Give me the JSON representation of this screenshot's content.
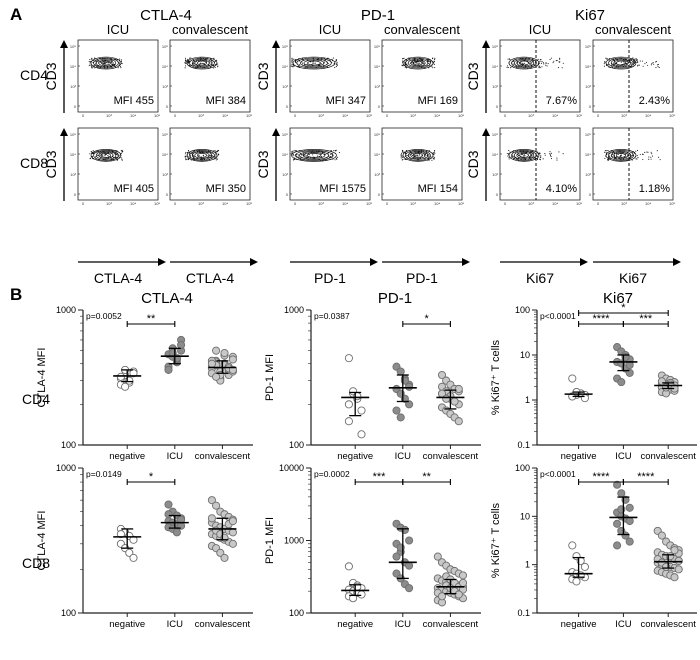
{
  "panel_labels": {
    "a": "A",
    "b": "B"
  },
  "panel_a": {
    "groups": [
      {
        "name": "CTLA-4",
        "x_label": "CTLA-4",
        "gate_line": false,
        "columns": [
          "ICU",
          "convalescent"
        ],
        "rows": [
          {
            "row": "CD4",
            "values": [
              "MFI 455",
              "MFI 384"
            ]
          },
          {
            "row": "CD8",
            "values": [
              "MFI 405",
              "MFI 350"
            ]
          }
        ]
      },
      {
        "name": "PD-1",
        "x_label": "PD-1",
        "gate_line": false,
        "columns": [
          "ICU",
          "convalescent"
        ],
        "rows": [
          {
            "row": "CD4",
            "values": [
              "MFI 347",
              "MFI 169"
            ]
          },
          {
            "row": "CD8",
            "values": [
              "MFI 1575",
              "MFI 154"
            ]
          }
        ]
      },
      {
        "name": "Ki67",
        "x_label": "Ki67",
        "gate_line": true,
        "columns": [
          "ICU",
          "convalescent"
        ],
        "rows": [
          {
            "row": "CD4",
            "values": [
              "7.67%",
              "2.43%"
            ]
          },
          {
            "row": "CD8",
            "values": [
              "4.10%",
              "1.18%"
            ]
          }
        ]
      }
    ],
    "y_label": "CD3",
    "x_tick_labels": [
      "0",
      "10³",
      "10⁴",
      "10⁵"
    ],
    "ctla_min_tick": "0",
    "pd1_min_tick": "-362",
    "ki67_min_ticks": [
      "-523",
      "-594"
    ],
    "y_tick_labels": [
      "10⁵",
      "10⁴",
      "10³",
      "0"
    ]
  },
  "row_labels": [
    "CD4",
    "CD8"
  ],
  "colors": {
    "negative": "#ffffff",
    "ICU": "#8c8c8c",
    "convalescent": "#c8c8c8",
    "outline": "#6e6e6e"
  },
  "chart_data": [
    {
      "type": "scatter",
      "title": "CTLA-4",
      "row": "CD4",
      "ylabel": "CTLA-4 MFI",
      "scale": "log",
      "ylim": [
        100,
        1000
      ],
      "yticks": [
        "100",
        "1000"
      ],
      "categories": [
        "negative",
        "ICU",
        "convalescent"
      ],
      "pvalue": "p=0.0052",
      "series": [
        {
          "name": "negative",
          "values": [
            310,
            330,
            290,
            350,
            280,
            360,
            300,
            340,
            320,
            270
          ],
          "median": 325,
          "iqr": [
            295,
            360
          ]
        },
        {
          "name": "ICU",
          "values": [
            470,
            520,
            410,
            600,
            380,
            450,
            430,
            500,
            360,
            480,
            440,
            550
          ],
          "median": 455,
          "iqr": [
            400,
            520
          ]
        },
        {
          "name": "convalescent",
          "values": [
            380,
            420,
            350,
            400,
            330,
            450,
            370,
            500,
            310,
            390,
            360,
            430,
            340,
            410,
            300,
            460,
            380,
            350,
            420,
            390,
            330,
            480,
            370,
            360,
            400,
            320
          ],
          "median": 375,
          "iqr": [
            340,
            420
          ]
        }
      ],
      "brackets": [
        {
          "from": 0,
          "to": 1,
          "label": "**"
        }
      ]
    },
    {
      "type": "scatter",
      "title": "PD-1",
      "row": "CD4",
      "ylabel": "PD-1 MFI",
      "scale": "log",
      "ylim": [
        100,
        1000
      ],
      "yticks": [
        "100",
        "1000"
      ],
      "categories": [
        "negative",
        "ICU",
        "convalescent"
      ],
      "pvalue": "p=0.0387",
      "series": [
        {
          "name": "negative",
          "values": [
            440,
            240,
            220,
            180,
            150,
            250,
            230,
            120,
            200
          ],
          "median": 225,
          "iqr": [
            165,
            245
          ]
        },
        {
          "name": "ICU",
          "values": [
            380,
            350,
            310,
            280,
            260,
            240,
            220,
            200,
            180,
            160,
            300,
            270
          ],
          "median": 265,
          "iqr": [
            210,
            330
          ]
        },
        {
          "name": "convalescent",
          "values": [
            330,
            300,
            280,
            260,
            250,
            240,
            230,
            220,
            210,
            200,
            190,
            180,
            170,
            160,
            150,
            270,
            250,
            230,
            210,
            260,
            240,
            220
          ],
          "median": 225,
          "iqr": [
            185,
            255
          ]
        }
      ],
      "brackets": [
        {
          "from": 1,
          "to": 2,
          "label": "*"
        }
      ]
    },
    {
      "type": "scatter",
      "title": "Ki67",
      "row": "CD4",
      "ylabel": "% Ki67⁺ T cells",
      "scale": "log",
      "ylim": [
        0.1,
        100
      ],
      "yticks": [
        "0.1",
        "1",
        "10",
        "100"
      ],
      "categories": [
        "negative",
        "ICU",
        "convalescent"
      ],
      "pvalue": "p<0.0001",
      "series": [
        {
          "name": "negative",
          "values": [
            3.0,
            1.5,
            1.4,
            1.3,
            1.2,
            1.3,
            1.4,
            1.1,
            1.2,
            1.5
          ],
          "median": 1.35,
          "iqr": [
            1.2,
            1.5
          ]
        },
        {
          "name": "ICU",
          "values": [
            15,
            12,
            10,
            8,
            7,
            6.5,
            5,
            4,
            3,
            2.5,
            9,
            6
          ],
          "median": 7.0,
          "iqr": [
            4.5,
            10
          ]
        },
        {
          "name": "convalescent",
          "values": [
            3.5,
            3.0,
            2.8,
            2.5,
            2.3,
            2.2,
            2.1,
            2.0,
            1.9,
            1.8,
            1.7,
            1.6,
            1.5,
            1.4,
            2.4,
            2.1,
            2.6,
            1.9,
            2.2,
            1.8
          ],
          "median": 2.1,
          "iqr": [
            1.8,
            2.4
          ]
        }
      ],
      "brackets": [
        {
          "from": 0,
          "to": 1,
          "label": "****",
          "level": 0
        },
        {
          "from": 1,
          "to": 2,
          "label": "***",
          "level": 0
        },
        {
          "from": 0,
          "to": 2,
          "label": "*",
          "level": 1
        }
      ]
    },
    {
      "type": "scatter",
      "title": "",
      "row": "CD8",
      "ylabel": "CTLA-4 MFI",
      "scale": "log",
      "ylim": [
        100,
        1000
      ],
      "yticks": [
        "100",
        "1000"
      ],
      "categories": [
        "negative",
        "ICU",
        "convalescent"
      ],
      "pvalue": "p=0.0149",
      "series": [
        {
          "name": "negative",
          "values": [
            380,
            360,
            340,
            320,
            300,
            280,
            260,
            240,
            350
          ],
          "median": 335,
          "iqr": [
            280,
            380
          ]
        },
        {
          "name": "ICU",
          "values": [
            560,
            500,
            470,
            450,
            430,
            420,
            410,
            400,
            390,
            380,
            360,
            440,
            480
          ],
          "median": 420,
          "iqr": [
            385,
            470
          ]
        },
        {
          "name": "convalescent",
          "values": [
            600,
            550,
            500,
            480,
            460,
            440,
            420,
            400,
            390,
            380,
            370,
            360,
            350,
            340,
            330,
            320,
            310,
            300,
            290,
            280,
            260,
            240,
            410,
            430,
            450,
            370,
            350,
            330
          ],
          "median": 380,
          "iqr": [
            320,
            450
          ]
        }
      ],
      "brackets": [
        {
          "from": 0,
          "to": 1,
          "label": "*"
        }
      ]
    },
    {
      "type": "scatter",
      "title": "",
      "row": "CD8",
      "ylabel": "PD-1 MFI",
      "scale": "log",
      "ylim": [
        100,
        10000
      ],
      "yticks": [
        "100",
        "1000",
        "10000"
      ],
      "categories": [
        "negative",
        "ICU",
        "convalescent"
      ],
      "pvalue": "p=0.0002",
      "series": [
        {
          "name": "negative",
          "values": [
            440,
            260,
            240,
            220,
            210,
            200,
            190,
            180,
            170,
            160,
            230
          ],
          "median": 205,
          "iqr": [
            175,
            245
          ]
        },
        {
          "name": "ICU",
          "values": [
            1700,
            1500,
            1400,
            1000,
            900,
            700,
            500,
            450,
            350,
            300,
            250,
            220,
            600,
            800
          ],
          "median": 500,
          "iqr": [
            300,
            1450
          ]
        },
        {
          "name": "convalescent",
          "values": [
            600,
            500,
            450,
            400,
            380,
            350,
            330,
            300,
            280,
            270,
            260,
            250,
            240,
            230,
            220,
            210,
            200,
            190,
            180,
            170,
            160,
            150,
            140,
            320,
            290,
            260,
            230,
            210,
            190,
            170,
            240,
            220,
            200,
            180,
            260
          ],
          "median": 230,
          "iqr": [
            185,
            290
          ]
        }
      ],
      "brackets": [
        {
          "from": 0,
          "to": 1,
          "label": "***"
        },
        {
          "from": 1,
          "to": 2,
          "label": "**"
        }
      ]
    },
    {
      "type": "scatter",
      "title": "",
      "row": "CD8",
      "ylabel": "% Ki67⁺ T cells",
      "scale": "log",
      "ylim": [
        0.1,
        100
      ],
      "yticks": [
        "0.1",
        "1",
        "10",
        "100"
      ],
      "categories": [
        "negative",
        "ICU",
        "convalescent"
      ],
      "pvalue": "p<0.0001",
      "series": [
        {
          "name": "negative",
          "values": [
            2.5,
            1.5,
            1.2,
            0.9,
            0.7,
            0.65,
            0.6,
            0.55,
            0.5,
            0.45,
            0.6
          ],
          "median": 0.65,
          "iqr": [
            0.55,
            1.4
          ]
        },
        {
          "name": "ICU",
          "values": [
            45,
            30,
            22,
            15,
            12,
            10,
            9,
            8,
            7,
            5,
            4,
            3,
            2.5,
            14
          ],
          "median": 9.5,
          "iqr": [
            4.2,
            25
          ]
        },
        {
          "name": "convalescent",
          "values": [
            5,
            4,
            3,
            2.5,
            2.2,
            2.0,
            1.8,
            1.6,
            1.5,
            1.4,
            1.3,
            1.2,
            1.1,
            1.0,
            0.95,
            0.9,
            0.85,
            0.8,
            0.75,
            0.7,
            0.65,
            0.6,
            0.55,
            1.7,
            1.3,
            1.1,
            0.9,
            1.5,
            2.0,
            1.2
          ],
          "median": 1.15,
          "iqr": [
            0.85,
            1.6
          ]
        }
      ],
      "brackets": [
        {
          "from": 0,
          "to": 1,
          "label": "****"
        },
        {
          "from": 1,
          "to": 2,
          "label": "****"
        }
      ]
    }
  ]
}
